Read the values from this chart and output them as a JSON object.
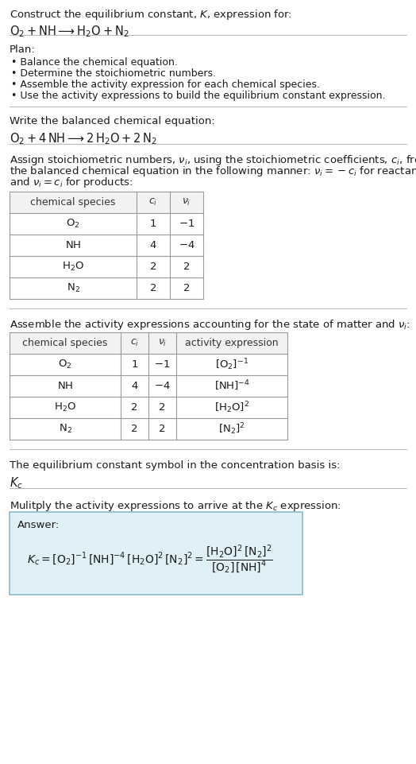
{
  "title_line1": "Construct the equilibrium constant, $K$, expression for:",
  "title_line2": "$\\mathrm{O}_2 + \\mathrm{NH} \\longrightarrow \\mathrm{H}_2\\mathrm{O} + \\mathrm{N}_2$",
  "plan_header": "Plan:",
  "plan_items": [
    "• Balance the chemical equation.",
    "• Determine the stoichiometric numbers.",
    "• Assemble the activity expression for each chemical species.",
    "• Use the activity expressions to build the equilibrium constant expression."
  ],
  "balanced_header": "Write the balanced chemical equation:",
  "balanced_eq": "$\\mathrm{O}_2 + 4\\,\\mathrm{NH} \\longrightarrow 2\\,\\mathrm{H}_2\\mathrm{O} + 2\\,\\mathrm{N}_2$",
  "stoich_intro_lines": [
    "Assign stoichiometric numbers, $\\nu_i$, using the stoichiometric coefficients, $c_i$, from",
    "the balanced chemical equation in the following manner: $\\nu_i = -c_i$ for reactants",
    "and $\\nu_i = c_i$ for products:"
  ],
  "table1_headers": [
    "chemical species",
    "$c_i$",
    "$\\nu_i$"
  ],
  "table1_rows": [
    [
      "$\\mathrm{O}_2$",
      "1",
      "$-1$"
    ],
    [
      "$\\mathrm{NH}$",
      "4",
      "$-4$"
    ],
    [
      "$\\mathrm{H}_2\\mathrm{O}$",
      "2",
      "2"
    ],
    [
      "$\\mathrm{N}_2$",
      "2",
      "2"
    ]
  ],
  "activity_intro": "Assemble the activity expressions accounting for the state of matter and $\\nu_i$:",
  "table2_headers": [
    "chemical species",
    "$c_i$",
    "$\\nu_i$",
    "activity expression"
  ],
  "table2_rows": [
    [
      "$\\mathrm{O}_2$",
      "1",
      "$-1$",
      "$[\\mathrm{O}_2]^{-1}$"
    ],
    [
      "$\\mathrm{NH}$",
      "4",
      "$-4$",
      "$[\\mathrm{NH}]^{-4}$"
    ],
    [
      "$\\mathrm{H}_2\\mathrm{O}$",
      "2",
      "2",
      "$[\\mathrm{H}_2\\mathrm{O}]^{2}$"
    ],
    [
      "$\\mathrm{N}_2$",
      "2",
      "2",
      "$[\\mathrm{N}_2]^{2}$"
    ]
  ],
  "kc_symbol_text": "The equilibrium constant symbol in the concentration basis is:",
  "kc_symbol": "$K_c$",
  "multiply_text": "Mulitply the activity expressions to arrive at the $K_c$ expression:",
  "answer_label": "Answer:",
  "bg_color": "#ffffff",
  "text_color": "#1a1a1a",
  "divider_color": "#bbbbbb",
  "table_border_color": "#999999",
  "table_header_bg": "#f2f2f2",
  "answer_box_bg": "#dff0f7",
  "answer_box_border": "#8bbccc",
  "font_size": 9.5
}
